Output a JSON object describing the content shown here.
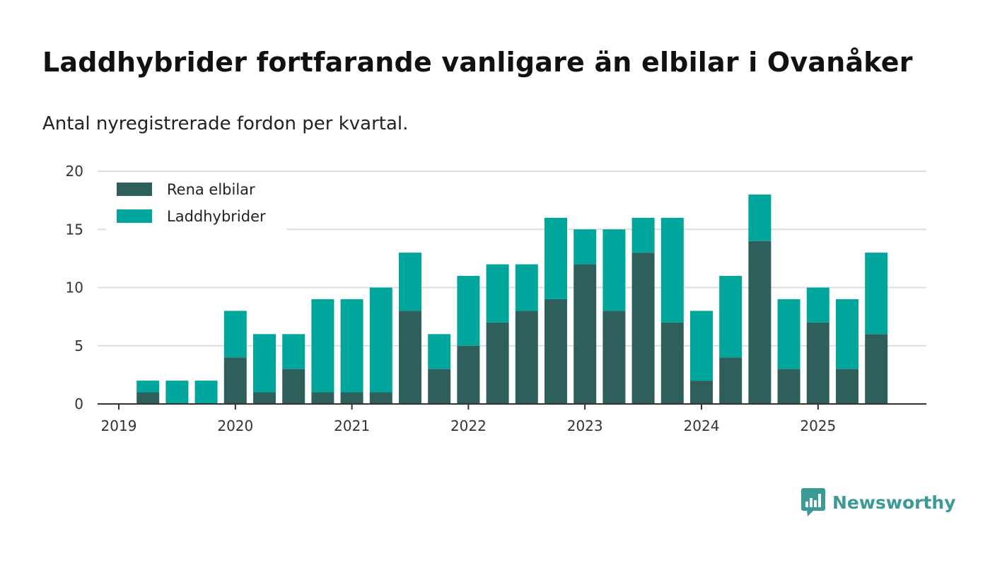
{
  "header": {
    "title": "Laddhybrider fortfarande vanligare än elbilar i Ovanåker",
    "subtitle": "Antal nyregistrerade fordon per kvartal."
  },
  "brand": {
    "name": "Newsworthy",
    "color": "#3a9b96"
  },
  "chart_data": {
    "type": "bar",
    "stacked": true,
    "categories": [
      "2019 Q1",
      "2019 Q2",
      "2019 Q3",
      "2019 Q4",
      "2020 Q1",
      "2020 Q2",
      "2020 Q3",
      "2020 Q4",
      "2021 Q1",
      "2021 Q2",
      "2021 Q3",
      "2021 Q4",
      "2022 Q1",
      "2022 Q2",
      "2022 Q3",
      "2022 Q4",
      "2023 Q1",
      "2023 Q2",
      "2023 Q3",
      "2023 Q4",
      "2024 Q1",
      "2024 Q2",
      "2024 Q3",
      "2024 Q4",
      "2025 Q1",
      "2025 Q2",
      "2025 Q3"
    ],
    "series": [
      {
        "name": "Rena elbilar",
        "color": "#2f5f5b",
        "values": [
          0,
          1,
          0,
          0,
          4,
          1,
          3,
          1,
          1,
          1,
          8,
          3,
          5,
          7,
          8,
          9,
          12,
          8,
          13,
          7,
          2,
          4,
          14,
          3,
          7,
          3,
          6
        ]
      },
      {
        "name": "Laddhybrider",
        "color": "#00a59c",
        "values": [
          0,
          1,
          2,
          2,
          4,
          5,
          3,
          8,
          8,
          9,
          5,
          3,
          6,
          5,
          4,
          7,
          3,
          7,
          3,
          9,
          6,
          7,
          4,
          6,
          3,
          6,
          7
        ]
      }
    ],
    "ylim": [
      0,
      20
    ],
    "yticks": [
      0,
      5,
      10,
      15,
      20
    ],
    "xticks": [
      "2019",
      "2020",
      "2021",
      "2022",
      "2023",
      "2024",
      "2025"
    ],
    "xtick_index": [
      0,
      4,
      8,
      12,
      16,
      20,
      24
    ],
    "legend_position": "top-left",
    "grid": true
  }
}
